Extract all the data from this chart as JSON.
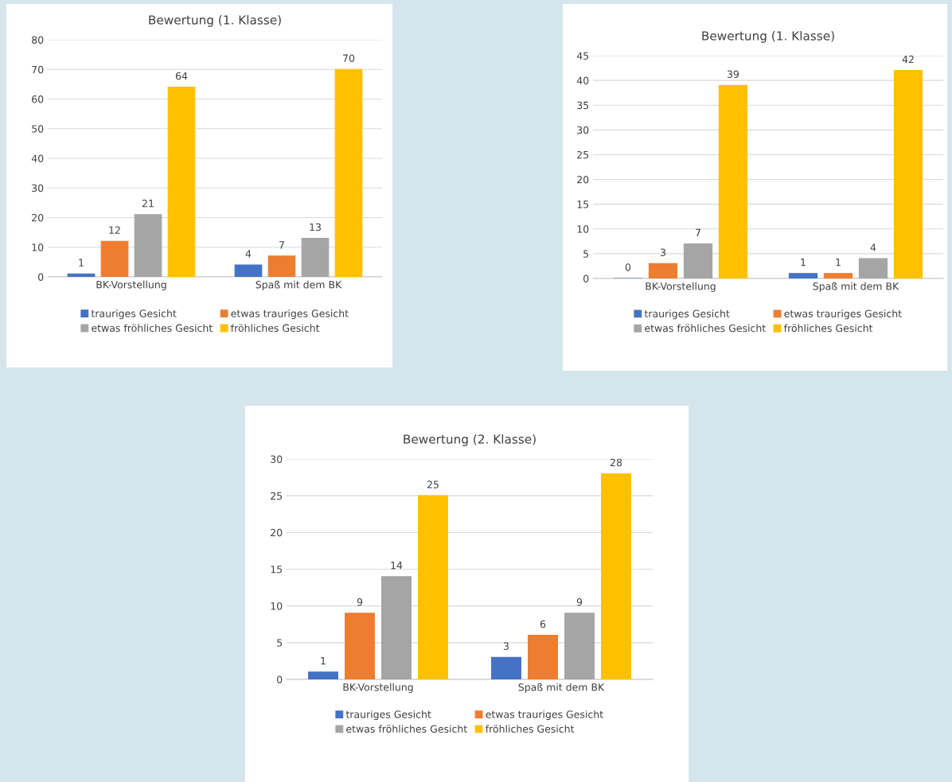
{
  "chart_data": [
    {
      "type": "bar",
      "title": "Bewertung (1. Klasse)",
      "categories": [
        "BK-Vorstellung",
        "Spaß mit dem BK"
      ],
      "series": [
        {
          "name": "trauriges Gesicht",
          "color": "#4472c4",
          "values": [
            1,
            4
          ]
        },
        {
          "name": "etwas trauriges Gesicht",
          "color": "#ed7d31",
          "values": [
            12,
            7
          ]
        },
        {
          "name": "etwas fröhliches Gesicht",
          "color": "#a5a5a5",
          "values": [
            21,
            13
          ]
        },
        {
          "name": "fröhliches Gesicht",
          "color": "#ffc000",
          "values": [
            64,
            70
          ]
        }
      ],
      "ylim": [
        0,
        80
      ],
      "yticks": [
        0,
        10,
        20,
        30,
        40,
        50,
        60,
        70,
        80
      ],
      "grid": "y",
      "legend": "bottom",
      "data_labels": true
    },
    {
      "type": "bar",
      "title": "Bewertung (1. Klasse)",
      "categories": [
        "BK-Vorstellung",
        "Spaß mit dem BK"
      ],
      "series": [
        {
          "name": "trauriges Gesicht",
          "color": "#4472c4",
          "values": [
            0,
            1
          ]
        },
        {
          "name": "etwas trauriges Gesicht",
          "color": "#ed7d31",
          "values": [
            3,
            1
          ]
        },
        {
          "name": "etwas fröhliches Gesicht",
          "color": "#a5a5a5",
          "values": [
            7,
            4
          ]
        },
        {
          "name": "fröhliches Gesicht",
          "color": "#ffc000",
          "values": [
            39,
            42
          ]
        }
      ],
      "ylim": [
        0,
        45
      ],
      "yticks": [
        0,
        5,
        10,
        15,
        20,
        25,
        30,
        35,
        40,
        45
      ],
      "grid": "y",
      "legend": "bottom",
      "data_labels": true
    },
    {
      "type": "bar",
      "title": "Bewertung (2. Klasse)",
      "categories": [
        "BK-Vorstellung",
        "Spaß mit dem BK"
      ],
      "series": [
        {
          "name": "trauriges Gesicht",
          "color": "#4472c4",
          "values": [
            1,
            3
          ]
        },
        {
          "name": "etwas trauriges Gesicht",
          "color": "#ed7d31",
          "values": [
            9,
            6
          ]
        },
        {
          "name": "etwas fröhliches Gesicht",
          "color": "#a5a5a5",
          "values": [
            14,
            9
          ]
        },
        {
          "name": "fröhliches Gesicht",
          "color": "#ffc000",
          "values": [
            25,
            28
          ]
        }
      ],
      "ylim": [
        0,
        30
      ],
      "yticks": [
        0,
        5,
        10,
        15,
        20,
        25,
        30
      ],
      "grid": "y",
      "legend": "bottom",
      "data_labels": true
    }
  ]
}
